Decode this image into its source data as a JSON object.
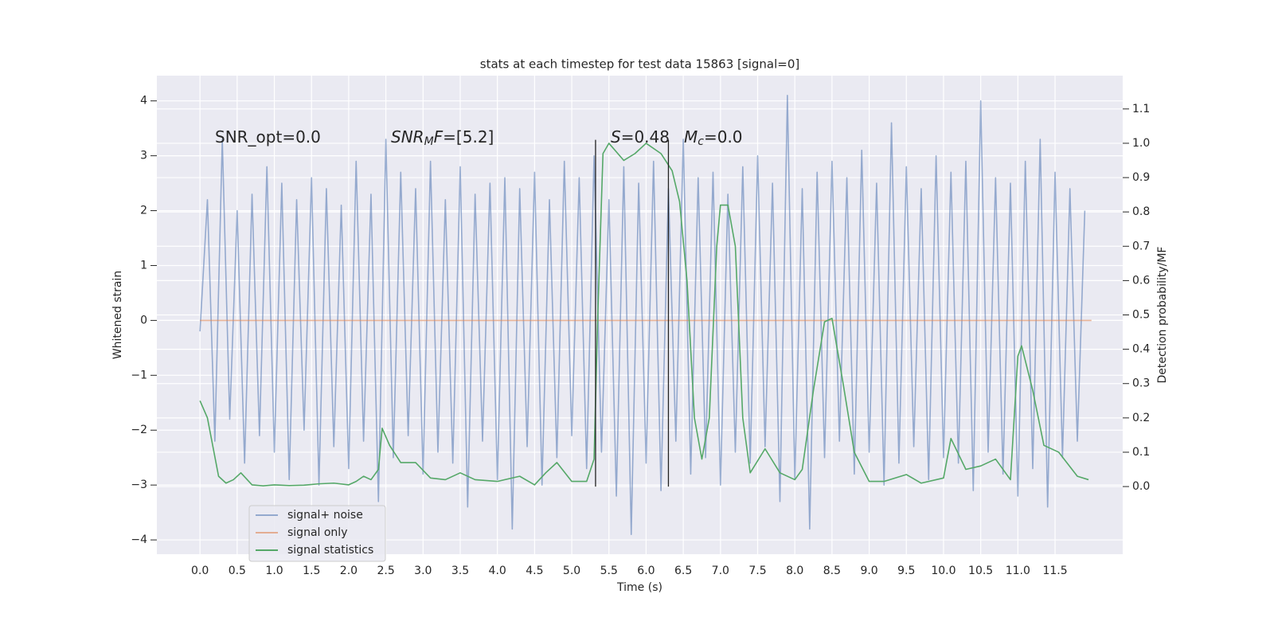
{
  "chart_data": {
    "type": "line",
    "title": "stats at each timestep for test data 15863 [signal=0]",
    "xlabel": "Time (s)",
    "ylabel": "Whitened strain",
    "y2label": "Detection probability/MF",
    "xlim": [
      -0.58,
      12.41
    ],
    "ylim": [
      -4.26,
      4.46
    ],
    "y2lim": [
      -0.197,
      1.197
    ],
    "xticks": [
      {
        "value": 0,
        "label": "0.0"
      },
      0.5,
      {
        "value": 1,
        "label": "1.0"
      },
      1.5,
      {
        "value": 2,
        "label": "2.0"
      },
      2.5,
      {
        "value": 3,
        "label": "3.0"
      },
      3.5,
      {
        "value": 4,
        "label": "4.0"
      },
      4.5,
      {
        "value": 5,
        "label": "5.0"
      },
      5.5,
      {
        "value": 6,
        "label": "6.0"
      },
      6.5,
      {
        "value": 7,
        "label": "7.0"
      },
      7.5,
      {
        "value": 8,
        "label": "8.0"
      },
      8.5,
      {
        "value": 9,
        "label": "9.0"
      },
      9.5,
      {
        "value": 10,
        "label": "10.0"
      },
      10.5,
      {
        "value": 11,
        "label": "11.0"
      },
      11.5
    ],
    "yticks": [
      {
        "value": -4,
        "label": "−4"
      },
      {
        "value": -3,
        "label": "−3"
      },
      {
        "value": -2,
        "label": "−2"
      },
      {
        "value": -1,
        "label": "−1"
      },
      0,
      1,
      2,
      3,
      4
    ],
    "y2ticks": [
      {
        "value": 0,
        "label": "0.0"
      },
      0.1,
      0.2,
      0.3,
      0.4,
      0.5,
      0.6,
      0.7,
      0.8,
      0.9,
      {
        "value": 1,
        "label": "1.0"
      },
      1.1
    ],
    "grid": true,
    "background": "#eaeaf2",
    "grid_color": "#ffffff",
    "legend": "lower left",
    "series": [
      {
        "name": "signal+ noise",
        "color": "#4c72b0",
        "opacity": 0.55,
        "x": [
          0.0,
          0.1,
          0.2,
          0.3,
          0.4,
          0.5,
          0.6,
          0.7,
          0.8,
          0.9,
          1.0,
          1.1,
          1.2,
          1.3,
          1.4,
          1.5,
          1.6,
          1.7,
          1.8,
          1.9,
          2.0,
          2.1,
          2.2,
          2.3,
          2.4,
          2.5,
          2.6,
          2.7,
          2.8,
          2.9,
          3.0,
          3.1,
          3.2,
          3.3,
          3.4,
          3.5,
          3.6,
          3.7,
          3.8,
          3.9,
          4.0,
          4.1,
          4.2,
          4.3,
          4.4,
          4.5,
          4.6,
          4.7,
          4.8,
          4.9,
          5.0,
          5.1,
          5.2,
          5.3,
          5.4,
          5.5,
          5.6,
          5.7,
          5.8,
          5.9,
          6.0,
          6.1,
          6.2,
          6.3,
          6.4,
          6.5,
          6.6,
          6.7,
          6.8,
          6.9,
          7.0,
          7.1,
          7.2,
          7.3,
          7.4,
          7.5,
          7.6,
          7.7,
          7.8,
          7.9,
          8.0,
          8.1,
          8.2,
          8.3,
          8.4,
          8.5,
          8.6,
          8.7,
          8.8,
          8.9,
          9.0,
          9.1,
          9.2,
          9.3,
          9.4,
          9.5,
          9.6,
          9.7,
          9.8,
          9.9,
          10.0,
          10.1,
          10.2,
          10.3,
          10.4,
          10.5,
          10.6,
          10.7,
          10.8,
          10.9,
          11.0,
          11.1,
          11.2,
          11.3,
          11.4,
          11.5,
          11.6,
          11.7,
          11.8,
          11.9
        ],
        "values": [
          -0.2,
          2.2,
          -2.2,
          3.3,
          -1.8,
          2.0,
          -2.6,
          2.3,
          -2.1,
          2.8,
          -2.4,
          2.5,
          -2.9,
          2.2,
          -2.0,
          2.6,
          -3.0,
          2.4,
          -2.3,
          2.1,
          -2.7,
          2.9,
          -2.2,
          2.3,
          -3.3,
          3.3,
          -2.5,
          2.7,
          -2.1,
          2.4,
          -2.8,
          2.9,
          -2.4,
          2.2,
          -2.6,
          2.8,
          -3.4,
          2.3,
          -2.2,
          2.5,
          -2.9,
          2.6,
          -3.8,
          2.4,
          -2.3,
          2.7,
          -3.0,
          2.2,
          -2.5,
          2.9,
          -2.1,
          2.6,
          -2.7,
          3.0,
          -2.4,
          2.2,
          -3.2,
          2.8,
          -3.9,
          2.5,
          -2.6,
          2.9,
          -3.1,
          2.4,
          -2.2,
          3.3,
          -2.8,
          2.6,
          -2.5,
          2.7,
          -3.0,
          2.3,
          -2.4,
          2.8,
          -2.6,
          3.0,
          -2.3,
          2.5,
          -3.3,
          4.1,
          -2.9,
          2.4,
          -3.8,
          2.7,
          -2.5,
          2.9,
          -2.2,
          2.6,
          -2.8,
          3.1,
          -2.4,
          2.5,
          -3.0,
          3.6,
          -2.6,
          2.8,
          -2.3,
          2.4,
          -2.9,
          3.0,
          -2.5,
          2.7,
          -2.6,
          2.9,
          -3.1,
          4.0,
          -2.4,
          2.6,
          -2.8,
          2.5,
          -3.2,
          2.9,
          -2.7,
          3.3,
          -3.4,
          2.7,
          -2.5,
          2.4,
          -2.2,
          2.0
        ]
      },
      {
        "name": "signal only",
        "color": "#dd8452",
        "opacity": 0.6,
        "x": [
          0.0,
          11.99
        ],
        "values": [
          0,
          0
        ]
      },
      {
        "name": "signal statistics",
        "color": "#55a868",
        "opacity": 1,
        "axis": "y2",
        "x": [
          0.0,
          0.1,
          0.25,
          0.35,
          0.45,
          0.55,
          0.7,
          0.85,
          1.0,
          1.2,
          1.4,
          1.6,
          1.8,
          2.0,
          2.1,
          2.2,
          2.3,
          2.4,
          2.45,
          2.55,
          2.7,
          2.9,
          3.1,
          3.3,
          3.5,
          3.7,
          4.0,
          4.3,
          4.5,
          4.65,
          4.8,
          5.0,
          5.2,
          5.3,
          5.35,
          5.42,
          5.5,
          5.7,
          5.85,
          6.0,
          6.2,
          6.35,
          6.45,
          6.55,
          6.65,
          6.75,
          6.85,
          6.95,
          7.0,
          7.1,
          7.2,
          7.3,
          7.4,
          7.6,
          7.8,
          8.0,
          8.1,
          8.25,
          8.4,
          8.5,
          8.65,
          8.8,
          9.0,
          9.2,
          9.5,
          9.7,
          10.0,
          10.1,
          10.3,
          10.5,
          10.7,
          10.9,
          11.0,
          11.05,
          11.2,
          11.35,
          11.55,
          11.8,
          11.95
        ],
        "values": [
          0.25,
          0.2,
          0.03,
          0.01,
          0.02,
          0.04,
          0.005,
          0.002,
          0.005,
          0.003,
          0.004,
          0.008,
          0.01,
          0.005,
          0.015,
          0.03,
          0.02,
          0.05,
          0.17,
          0.12,
          0.07,
          0.07,
          0.025,
          0.02,
          0.04,
          0.02,
          0.015,
          0.03,
          0.005,
          0.04,
          0.07,
          0.015,
          0.015,
          0.08,
          0.5,
          0.97,
          1.0,
          0.95,
          0.97,
          1.0,
          0.97,
          0.92,
          0.83,
          0.6,
          0.2,
          0.08,
          0.2,
          0.7,
          0.82,
          0.82,
          0.7,
          0.2,
          0.04,
          0.11,
          0.04,
          0.02,
          0.05,
          0.28,
          0.48,
          0.49,
          0.3,
          0.1,
          0.015,
          0.015,
          0.035,
          0.01,
          0.025,
          0.14,
          0.05,
          0.06,
          0.08,
          0.02,
          0.38,
          0.41,
          0.28,
          0.12,
          0.1,
          0.03,
          0.02
        ]
      }
    ],
    "vlines": [
      {
        "x": 5.32,
        "ymin": 0,
        "ymax": 1.01,
        "color": "#222222"
      },
      {
        "x": 6.3,
        "ymin": 0,
        "ymax": 1.01,
        "color": "#222222"
      }
    ],
    "annotations": [
      [
        {
          "text": "SNR_opt=0.0",
          "style": "normal"
        }
      ],
      [
        {
          "text": "SNR",
          "style": "italic"
        },
        {
          "text": "M",
          "style": "italic-sub"
        },
        {
          "text": "F",
          "style": "italic"
        },
        {
          "text": "=[5.2]",
          "style": "normal"
        }
      ],
      [
        {
          "text": "S",
          "style": "italic"
        },
        {
          "text": "=0.48",
          "style": "normal"
        }
      ],
      [
        {
          "text": "M",
          "style": "italic"
        },
        {
          "text": "c",
          "style": "italic-sub"
        },
        {
          "text": "=0.0",
          "style": "normal"
        }
      ]
    ]
  }
}
